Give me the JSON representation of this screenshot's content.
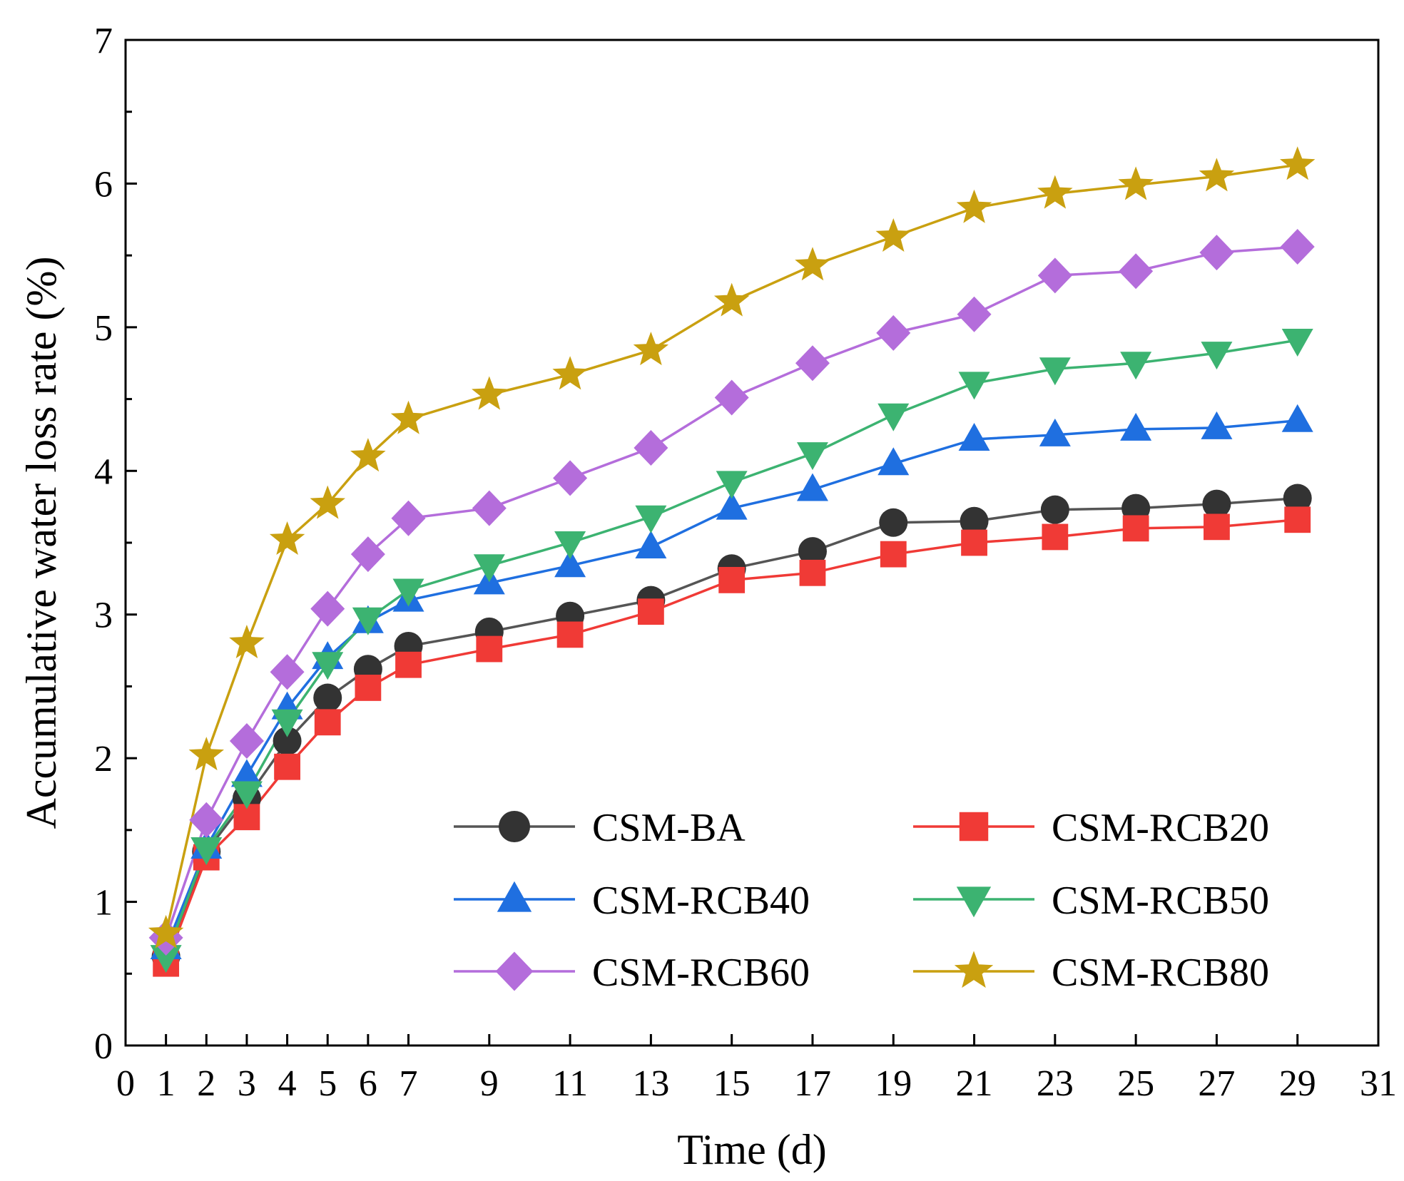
{
  "chart_data": {
    "type": "line",
    "title": "",
    "xlabel": "Time (d)",
    "ylabel": "Accumulative water loss rate (%)",
    "xlim": [
      0,
      31
    ],
    "ylim": [
      0,
      7
    ],
    "xticks": [
      0,
      1,
      2,
      3,
      4,
      5,
      6,
      7,
      9,
      11,
      13,
      15,
      17,
      19,
      21,
      23,
      25,
      27,
      29,
      31
    ],
    "yticks": [
      0,
      1,
      2,
      3,
      4,
      5,
      6,
      7
    ],
    "grid": false,
    "legend_position": "bottom-right",
    "x": [
      1,
      2,
      3,
      4,
      5,
      6,
      7,
      9,
      11,
      13,
      15,
      17,
      19,
      21,
      23,
      25,
      27,
      29
    ],
    "series": [
      {
        "name": "CSM-BA",
        "marker": "circle",
        "color": "#333333",
        "line_color": "#555555",
        "values": [
          0.62,
          1.35,
          1.72,
          2.12,
          2.42,
          2.62,
          2.78,
          2.88,
          2.99,
          3.1,
          3.32,
          3.44,
          3.64,
          3.65,
          3.73,
          3.74,
          3.77,
          3.81
        ]
      },
      {
        "name": "CSM-RCB20",
        "marker": "square",
        "color": "#f03a36",
        "line_color": "#f03a36",
        "values": [
          0.57,
          1.31,
          1.59,
          1.94,
          2.25,
          2.49,
          2.65,
          2.76,
          2.86,
          3.02,
          3.24,
          3.29,
          3.42,
          3.5,
          3.54,
          3.6,
          3.61,
          3.66
        ]
      },
      {
        "name": "CSM-RCB40",
        "marker": "triangle-up",
        "color": "#1f6fe0",
        "line_color": "#1f6fe0",
        "values": [
          0.68,
          1.38,
          1.88,
          2.35,
          2.7,
          2.95,
          3.1,
          3.22,
          3.34,
          3.47,
          3.74,
          3.87,
          4.05,
          4.22,
          4.25,
          4.29,
          4.3,
          4.35
        ]
      },
      {
        "name": "CSM-RCB50",
        "marker": "triangle-down",
        "color": "#3cb371",
        "line_color": "#3cb371",
        "values": [
          0.62,
          1.37,
          1.76,
          2.26,
          2.66,
          2.97,
          3.17,
          3.34,
          3.5,
          3.68,
          3.92,
          4.12,
          4.39,
          4.61,
          4.71,
          4.75,
          4.82,
          4.91
        ]
      },
      {
        "name": "CSM-RCB60",
        "marker": "diamond",
        "color": "#b46ddb",
        "line_color": "#b46ddb",
        "values": [
          0.75,
          1.57,
          2.12,
          2.6,
          3.04,
          3.42,
          3.67,
          3.74,
          3.95,
          4.16,
          4.51,
          4.75,
          4.96,
          5.09,
          5.36,
          5.39,
          5.52,
          5.56
        ]
      },
      {
        "name": "CSM-RCB80",
        "marker": "star",
        "color": "#c9a010",
        "line_color": "#c9a010",
        "values": [
          0.78,
          2.02,
          2.8,
          3.52,
          3.77,
          4.1,
          4.36,
          4.53,
          4.67,
          4.84,
          5.18,
          5.43,
          5.63,
          5.83,
          5.93,
          5.99,
          6.05,
          6.13
        ]
      }
    ]
  }
}
